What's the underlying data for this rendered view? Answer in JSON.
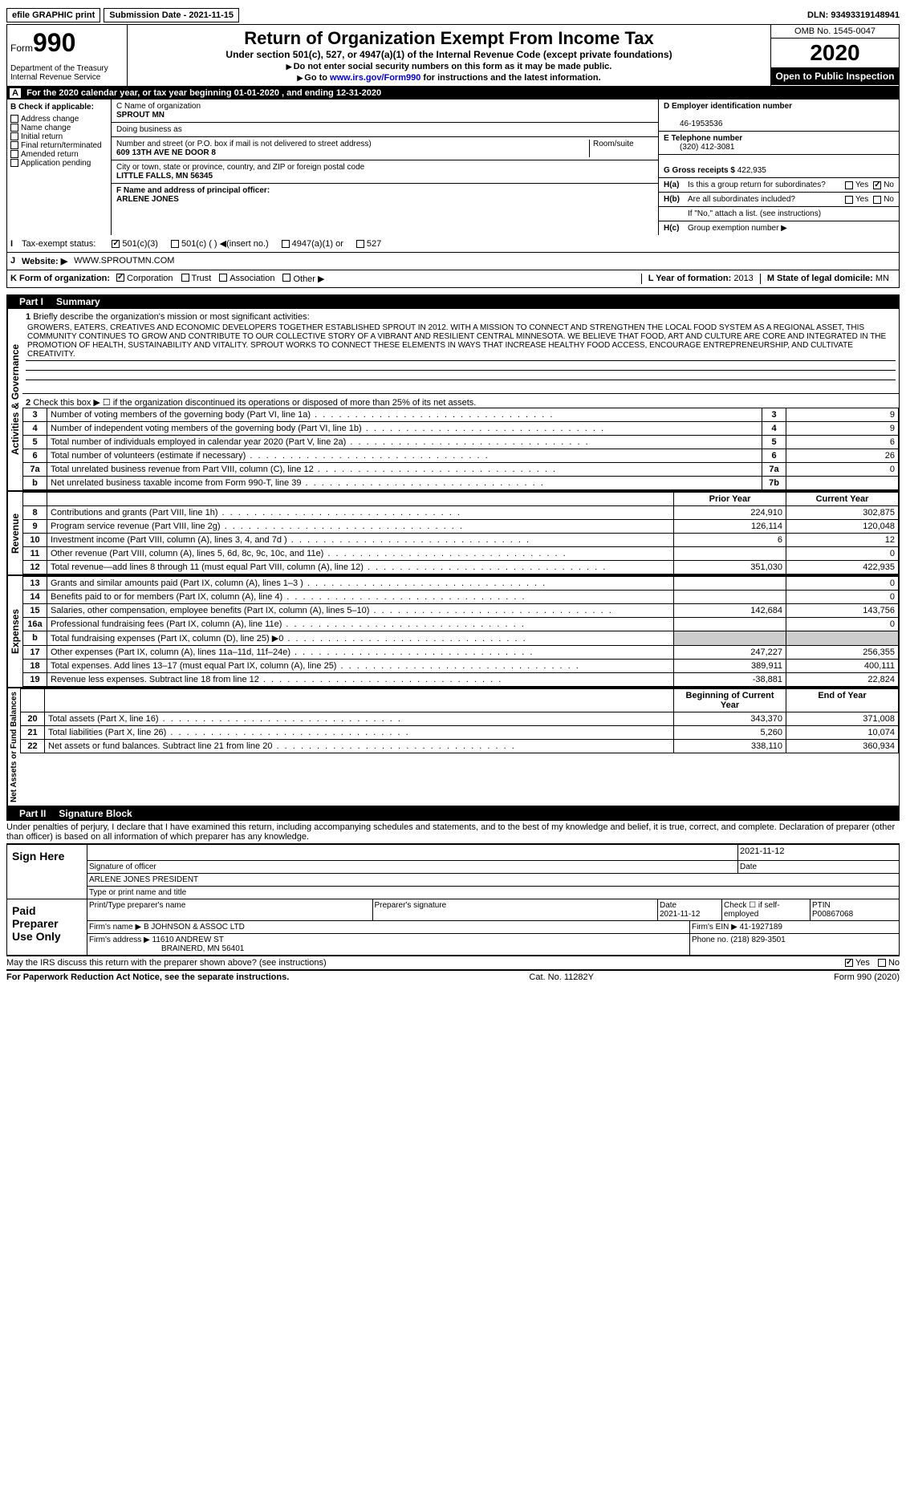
{
  "top": {
    "efile": "efile GRAPHIC print",
    "submission_label": "Submission Date - 2021-11-15",
    "dln_label": "DLN: 93493319148941"
  },
  "header": {
    "form_word": "Form",
    "form_num": "990",
    "dept": "Department of the Treasury",
    "irs": "Internal Revenue Service",
    "title": "Return of Organization Exempt From Income Tax",
    "subtitle": "Under section 501(c), 527, or 4947(a)(1) of the Internal Revenue Code (except private foundations)",
    "instr1": "Do not enter social security numbers on this form as it may be made public.",
    "instr2_pre": "Go to ",
    "instr2_link": "www.irs.gov/Form990",
    "instr2_post": " for instructions and the latest information.",
    "omb": "OMB No. 1545-0047",
    "year": "2020",
    "open": "Open to Public Inspection"
  },
  "cal": {
    "text": "For the 2020 calendar year, or tax year beginning 01-01-2020   , and ending 12-31-2020"
  },
  "section_b": {
    "label": "B Check if applicable:",
    "opts": [
      "Address change",
      "Name change",
      "Initial return",
      "Final return/terminated",
      "Amended return",
      "Application pending"
    ]
  },
  "section_c": {
    "c_label": "C Name of organization",
    "c_val": "SPROUT MN",
    "dba": "Doing business as",
    "addr_label": "Number and street (or P.O. box if mail is not delivered to street address)",
    "room_label": "Room/suite",
    "addr": "609 13TH AVE NE DOOR 8",
    "city_label": "City or town, state or province, country, and ZIP or foreign postal code",
    "city": "LITTLE FALLS, MN  56345",
    "f_label": "F Name and address of principal officer:",
    "f_val": "ARLENE JONES"
  },
  "section_d": {
    "d_label": "D Employer identification number",
    "d_val": "46-1953536",
    "e_label": "E Telephone number",
    "e_val": "(320) 412-3081",
    "g_label": "G Gross receipts $ ",
    "g_val": "422,935"
  },
  "section_h": {
    "ha_label": "H(a)",
    "ha_text": "Is this a group return for subordinates?",
    "ha_yes": "Yes",
    "ha_no": "No",
    "hb_label": "H(b)",
    "hb_text": "Are all subordinates included?",
    "hb_note": "If \"No,\" attach a list. (see instructions)",
    "hc_label": "H(c)",
    "hc_text": "Group exemption number ▶"
  },
  "tax_status": {
    "i_label": "I",
    "label": "Tax-exempt status:",
    "o1": "501(c)(3)",
    "o2": "501(c) (  ) ◀(insert no.)",
    "o3": "4947(a)(1) or",
    "o4": "527"
  },
  "website": {
    "j_label": "J",
    "label": "Website: ▶",
    "val": "WWW.SPROUTMN.COM"
  },
  "k_row": {
    "label": "K Form of organization:",
    "o1": "Corporation",
    "o2": "Trust",
    "o3": "Association",
    "o4": "Other ▶",
    "l_label": "L Year of formation: ",
    "l_val": "2013",
    "m_label": "M State of legal domicile: ",
    "m_val": "MN"
  },
  "part1": {
    "hdr_num": "Part I",
    "hdr_title": "Summary",
    "q1_label": "1",
    "q1_text": "Briefly describe the organization's mission or most significant activities:",
    "mission": "GROWERS, EATERS, CREATIVES AND ECONOMIC DEVELOPERS TOGETHER ESTABLISHED SPROUT IN 2012. WITH A MISSION TO CONNECT AND STRENGTHEN THE LOCAL FOOD SYSTEM AS A REGIONAL ASSET, THIS COMMUNITY CONTINUES TO GROW AND CONTRIBUTE TO OUR COLLECTIVE STORY OF A VIBRANT AND RESILIENT CENTRAL MINNESOTA. WE BELIEVE THAT FOOD, ART AND CULTURE ARE CORE AND INTEGRATED IN THE PROMOTION OF HEALTH, SUSTAINABILITY AND VITALITY. SPROUT WORKS TO CONNECT THESE ELEMENTS IN WAYS THAT INCREASE HEALTHY FOOD ACCESS, ENCOURAGE ENTREPRENEURSHIP, AND CULTIVATE CREATIVITY.",
    "q2_text": "Check this box ▶ ☐ if the organization discontinued its operations or disposed of more than 25% of its net assets.",
    "vert_gov": "Activities & Governance",
    "vert_rev": "Revenue",
    "vert_exp": "Expenses",
    "vert_net": "Net Assets or Fund Balances",
    "hdr_prior": "Prior Year",
    "hdr_current": "Current Year",
    "hdr_boy": "Beginning of Current Year",
    "hdr_eoy": "End of Year"
  },
  "gov_rows": [
    {
      "n": "3",
      "t": "Number of voting members of the governing body (Part VI, line 1a)",
      "c": "3",
      "v": "9"
    },
    {
      "n": "4",
      "t": "Number of independent voting members of the governing body (Part VI, line 1b)",
      "c": "4",
      "v": "9"
    },
    {
      "n": "5",
      "t": "Total number of individuals employed in calendar year 2020 (Part V, line 2a)",
      "c": "5",
      "v": "6"
    },
    {
      "n": "6",
      "t": "Total number of volunteers (estimate if necessary)",
      "c": "6",
      "v": "26"
    },
    {
      "n": "7a",
      "t": "Total unrelated business revenue from Part VIII, column (C), line 12",
      "c": "7a",
      "v": "0"
    },
    {
      "n": "b",
      "t": "Net unrelated business taxable income from Form 990-T, line 39",
      "c": "7b",
      "v": ""
    }
  ],
  "rev_rows": [
    {
      "n": "8",
      "t": "Contributions and grants (Part VIII, line 1h)",
      "p": "224,910",
      "c": "302,875"
    },
    {
      "n": "9",
      "t": "Program service revenue (Part VIII, line 2g)",
      "p": "126,114",
      "c": "120,048"
    },
    {
      "n": "10",
      "t": "Investment income (Part VIII, column (A), lines 3, 4, and 7d )",
      "p": "6",
      "c": "12"
    },
    {
      "n": "11",
      "t": "Other revenue (Part VIII, column (A), lines 5, 6d, 8c, 9c, 10c, and 11e)",
      "p": "",
      "c": "0"
    },
    {
      "n": "12",
      "t": "Total revenue—add lines 8 through 11 (must equal Part VIII, column (A), line 12)",
      "p": "351,030",
      "c": "422,935"
    }
  ],
  "exp_rows": [
    {
      "n": "13",
      "t": "Grants and similar amounts paid (Part IX, column (A), lines 1–3 )",
      "p": "",
      "c": "0"
    },
    {
      "n": "14",
      "t": "Benefits paid to or for members (Part IX, column (A), line 4)",
      "p": "",
      "c": "0"
    },
    {
      "n": "15",
      "t": "Salaries, other compensation, employee benefits (Part IX, column (A), lines 5–10)",
      "p": "142,684",
      "c": "143,756"
    },
    {
      "n": "16a",
      "t": "Professional fundraising fees (Part IX, column (A), line 11e)",
      "p": "",
      "c": "0"
    },
    {
      "n": "b",
      "t": "Total fundraising expenses (Part IX, column (D), line 25) ▶0",
      "p": "GRAY",
      "c": "GRAY"
    },
    {
      "n": "17",
      "t": "Other expenses (Part IX, column (A), lines 11a–11d, 11f–24e)",
      "p": "247,227",
      "c": "256,355"
    },
    {
      "n": "18",
      "t": "Total expenses. Add lines 13–17 (must equal Part IX, column (A), line 25)",
      "p": "389,911",
      "c": "400,111"
    },
    {
      "n": "19",
      "t": "Revenue less expenses. Subtract line 18 from line 12",
      "p": "-38,881",
      "c": "22,824"
    }
  ],
  "net_rows": [
    {
      "n": "20",
      "t": "Total assets (Part X, line 16)",
      "p": "343,370",
      "c": "371,008"
    },
    {
      "n": "21",
      "t": "Total liabilities (Part X, line 26)",
      "p": "5,260",
      "c": "10,074"
    },
    {
      "n": "22",
      "t": "Net assets or fund balances. Subtract line 21 from line 20",
      "p": "338,110",
      "c": "360,934"
    }
  ],
  "part2": {
    "hdr_num": "Part II",
    "hdr_title": "Signature Block",
    "perjury": "Under penalties of perjury, I declare that I have examined this return, including accompanying schedules and statements, and to the best of my knowledge and belief, it is true, correct, and complete. Declaration of preparer (other than officer) is based on all information of which preparer has any knowledge.",
    "sign_here": "Sign Here",
    "sig_officer": "Signature of officer",
    "date_label": "Date",
    "date_val": "2021-11-12",
    "name_title": "ARLENE JONES PRESIDENT",
    "type_name": "Type or print name and title",
    "paid": "Paid Preparer Use Only",
    "prep_name_label": "Print/Type preparer's name",
    "prep_sig_label": "Preparer's signature",
    "prep_date": "2021-11-12",
    "self_emp": "Check ☐ if self-employed",
    "ptin_label": "PTIN",
    "ptin": "P00867068",
    "firm_name_label": "Firm's name     ▶ ",
    "firm_name": "B JOHNSON & ASSOC LTD",
    "firm_ein_label": "Firm's EIN ▶ ",
    "firm_ein": "41-1927189",
    "firm_addr_label": "Firm's address ▶ ",
    "firm_addr1": "11610 ANDREW ST",
    "firm_addr2": "BRAINERD, MN  56401",
    "phone_label": "Phone no. ",
    "phone": "(218) 829-3501",
    "discuss": "May the IRS discuss this return with the preparer shown above? (see instructions)",
    "yes": "Yes",
    "no": "No"
  },
  "footer": {
    "left": "For Paperwork Reduction Act Notice, see the separate instructions.",
    "mid": "Cat. No. 11282Y",
    "right": "Form 990 (2020)"
  },
  "labels": {
    "q2n": "2",
    "a_prefix": "A"
  }
}
